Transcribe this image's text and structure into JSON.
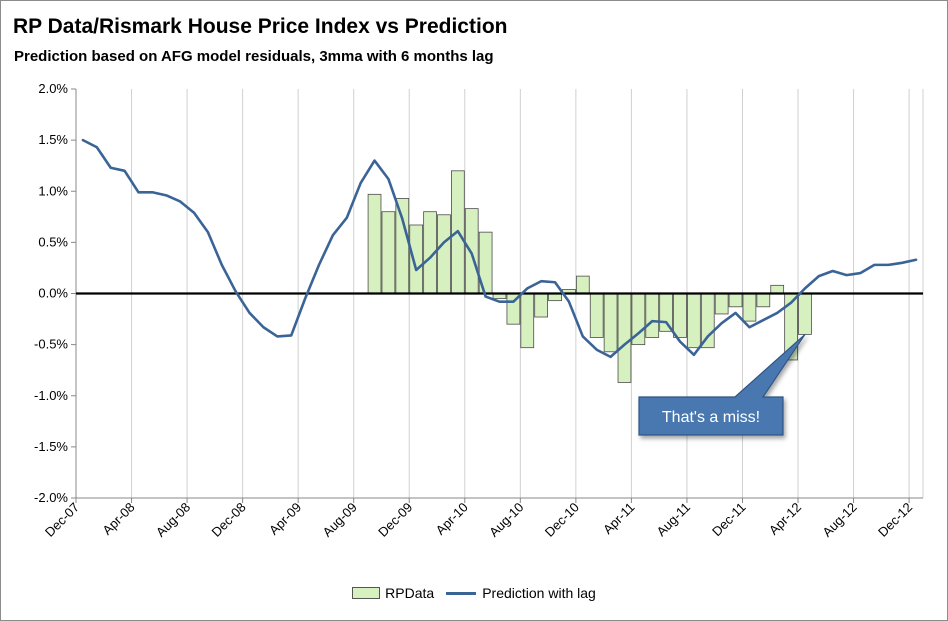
{
  "chart_data": {
    "type": "bar+line",
    "title": "RP Data/Rismark House Price Index vs Prediction",
    "subtitle": "Prediction based on AFG model residuals, 3mma with 6 months lag",
    "xlabel": "",
    "ylabel": "",
    "ylim": [
      -2.0,
      2.0
    ],
    "y_ticks": [
      "2.0%",
      "1.5%",
      "1.0%",
      "0.5%",
      "0.0%",
      "-0.5%",
      "-1.0%",
      "-1.5%",
      "-2.0%"
    ],
    "y_tick_values": [
      2.0,
      1.5,
      1.0,
      0.5,
      0.0,
      -0.5,
      -1.0,
      -1.5,
      -2.0
    ],
    "x_start_month": "Dec-07",
    "x_tick_labels": [
      "Dec-07",
      "Apr-08",
      "Aug-08",
      "Dec-08",
      "Apr-09",
      "Aug-09",
      "Dec-09",
      "Apr-10",
      "Aug-10",
      "Dec-10",
      "Apr-11",
      "Aug-11",
      "Dec-11",
      "Apr-12",
      "Aug-12",
      "Dec-12"
    ],
    "x_tick_month_index": [
      0,
      4,
      8,
      12,
      16,
      20,
      24,
      28,
      32,
      36,
      40,
      44,
      48,
      52,
      56,
      60
    ],
    "grid": "vertical",
    "legend_position": "bottom",
    "series": [
      {
        "name": "RPData",
        "type": "bar",
        "color": "#d7f0c0",
        "start_index": 21,
        "values": [
          0.97,
          0.8,
          0.93,
          0.67,
          0.8,
          0.77,
          1.2,
          0.83,
          0.6,
          -0.05,
          -0.3,
          -0.53,
          -0.23,
          -0.07,
          0.04,
          0.17,
          -0.43,
          -0.57,
          -0.87,
          -0.5,
          -0.43,
          -0.37,
          -0.43,
          -0.53,
          -0.53,
          -0.2,
          -0.13,
          -0.27,
          -0.13,
          0.08,
          -0.65,
          -0.4
        ]
      },
      {
        "name": "Prediction with lag",
        "type": "line",
        "color": "#3b6496",
        "start_index": 0,
        "values": [
          1.5,
          1.43,
          1.23,
          1.2,
          0.99,
          0.99,
          0.96,
          0.9,
          0.79,
          0.6,
          0.28,
          0.02,
          -0.19,
          -0.33,
          -0.42,
          -0.41,
          -0.05,
          0.28,
          0.57,
          0.74,
          1.08,
          1.3,
          1.12,
          0.73,
          0.23,
          0.35,
          0.5,
          0.61,
          0.39,
          -0.03,
          -0.08,
          -0.08,
          0.05,
          0.12,
          0.11,
          -0.08,
          -0.42,
          -0.55,
          -0.62,
          -0.5,
          -0.39,
          -0.27,
          -0.28,
          -0.47,
          -0.6,
          -0.42,
          -0.29,
          -0.19,
          -0.33,
          -0.26,
          -0.19,
          -0.09,
          0.05,
          0.17,
          0.22,
          0.18,
          0.2,
          0.28,
          0.28,
          0.3,
          0.33
        ]
      }
    ],
    "annotation": {
      "text": "That's a miss!",
      "target_month": "Apr-12",
      "color": "#4a78b0"
    }
  }
}
